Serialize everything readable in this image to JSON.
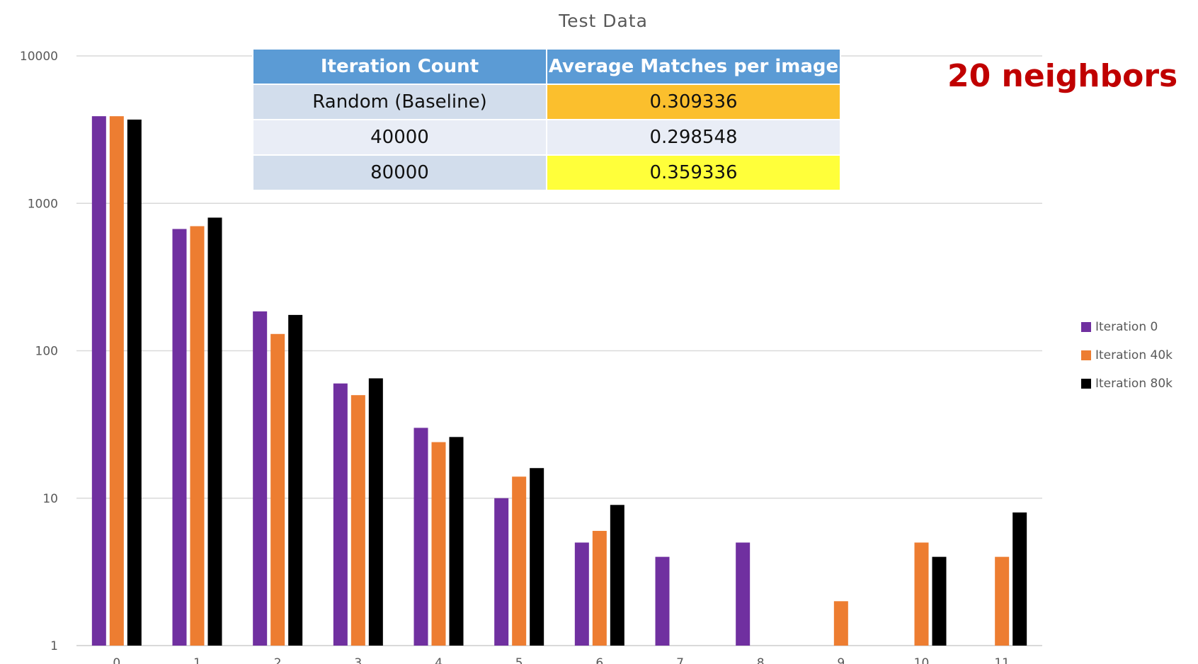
{
  "annotation": "20 neighbors",
  "table": {
    "headers": [
      "Iteration Count",
      "Average Matches per image"
    ],
    "rows": [
      [
        "Random (Baseline)",
        "0.309336"
      ],
      [
        "40000",
        "0.298548"
      ],
      [
        "80000",
        "0.359336"
      ]
    ]
  },
  "chart_data": {
    "type": "bar",
    "title": "Test Data",
    "xlabel": "",
    "ylabel": "",
    "yscale": "log",
    "ylim": [
      1,
      10000
    ],
    "yticks": [
      "1",
      "10",
      "100",
      "1000",
      "10000"
    ],
    "categories": [
      "0",
      "1",
      "2",
      "3",
      "4",
      "5",
      "6",
      "7",
      "8",
      "9",
      "10",
      "11"
    ],
    "series": [
      {
        "name": "Iteration 0",
        "color": "#7030a0",
        "values": [
          3900,
          670,
          185,
          60,
          30,
          10,
          5,
          4,
          5,
          null,
          null,
          null
        ]
      },
      {
        "name": "Iteration 40k",
        "color": "#ed7d31",
        "values": [
          3900,
          700,
          130,
          50,
          24,
          14,
          6,
          null,
          null,
          2,
          5,
          4
        ]
      },
      {
        "name": "Iteration 80k",
        "color": "#000000",
        "values": [
          3700,
          800,
          175,
          65,
          26,
          16,
          9,
          null,
          null,
          null,
          4,
          8
        ]
      }
    ],
    "grid": true,
    "legend": "right"
  }
}
